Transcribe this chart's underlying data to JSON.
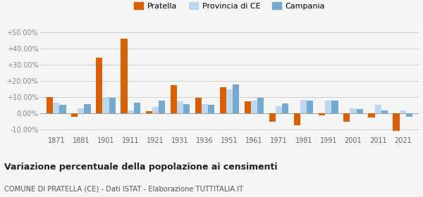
{
  "years": [
    1871,
    1881,
    1901,
    1911,
    1921,
    1931,
    1936,
    1951,
    1961,
    1971,
    1981,
    1991,
    2001,
    2011,
    2021
  ],
  "pratella": [
    10.0,
    -2.5,
    34.0,
    46.0,
    1.0,
    17.0,
    9.5,
    16.0,
    7.0,
    -5.5,
    -7.5,
    -1.5,
    -5.5,
    -3.0,
    -11.0
  ],
  "provincia_ce": [
    6.5,
    3.0,
    9.5,
    1.5,
    3.5,
    7.0,
    5.5,
    14.5,
    7.5,
    4.0,
    8.0,
    7.5,
    3.0,
    5.0,
    1.5
  ],
  "campania": [
    5.0,
    5.5,
    9.5,
    6.5,
    7.5,
    5.5,
    5.0,
    17.5,
    9.5,
    6.0,
    7.5,
    7.5,
    2.5,
    1.5,
    -2.5
  ],
  "colors": {
    "pratella": "#d95f02",
    "provincia_ce": "#bdd7ee",
    "campania": "#74a9cf"
  },
  "ylim": [
    -13,
    54
  ],
  "yticks": [
    -10,
    0,
    10,
    20,
    30,
    40,
    50
  ],
  "ytick_labels": [
    "-10.00%",
    "0.00%",
    "+10.00%",
    "+20.00%",
    "+30.00%",
    "+40.00%",
    "+50.00%"
  ],
  "title": "Variazione percentuale della popolazione ai censimenti",
  "subtitle": "COMUNE DI PRATELLA (CE) - Dati ISTAT - Elaborazione TUTTITALIA.IT",
  "legend_labels": [
    "Pratella",
    "Provincia di CE",
    "Campania"
  ],
  "bar_width": 0.26,
  "background_color": "#f5f5f5",
  "plot_bg_color": "#f5f5f5",
  "grid_color": "#cccccc"
}
